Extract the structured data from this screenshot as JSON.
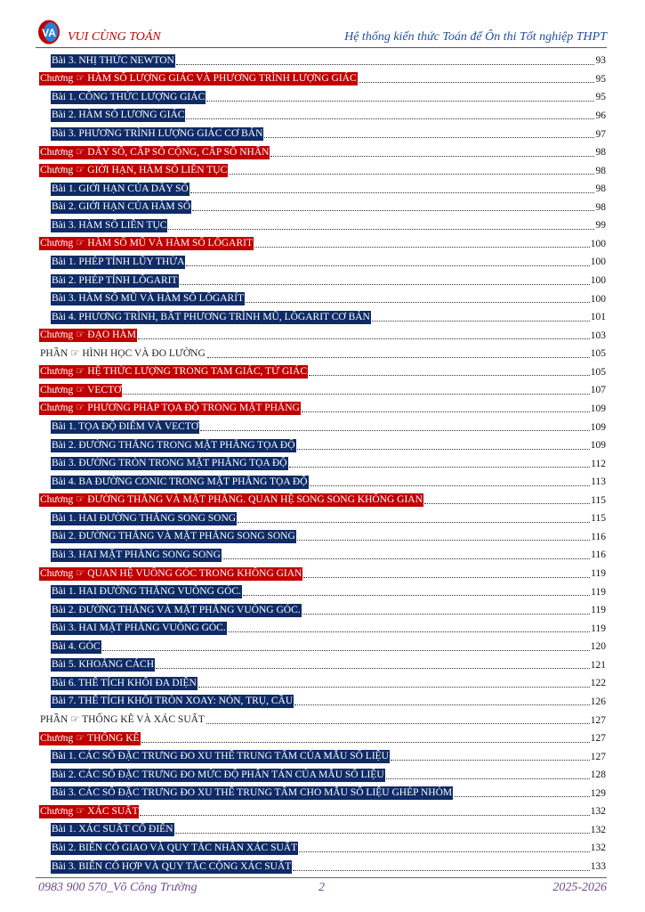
{
  "header": {
    "brand": "VUI CÙNG TOÁN",
    "logo_text": "VA",
    "subtitle": "Hệ thống kiến thức Toán để Ôn thi Tốt nghiệp THPT"
  },
  "colors": {
    "chapter_bg": "#c00000",
    "lesson_bg": "#0f2b66",
    "brand": "#c00000",
    "subtitle": "#1f4e9a",
    "footer": "#6b4c8a"
  },
  "icons": {
    "pointer": "pointing-hand-icon"
  },
  "toc": [
    {
      "type": "lesson",
      "text": "Bài 3.  NHỊ THỨC NEWTON",
      "page": "93"
    },
    {
      "type": "chapter",
      "text": "Chương ☞ HÀM SỐ LƯỢNG GIÁC VÀ PHƯƠNG TRÌNH LƯỢNG GIÁC",
      "page": "95"
    },
    {
      "type": "lesson",
      "text": "Bài 1. CÔNG THỨC LƯỢNG GIÁC",
      "page": "95"
    },
    {
      "type": "lesson",
      "text": "Bài 2. HÀM SỐ LƯƠNG GIÁC",
      "page": "96"
    },
    {
      "type": "lesson",
      "text": "Bài 3. PHƯƠNG TRÌNH LƯỢNG GIÁC CƠ BẢN",
      "page": "97"
    },
    {
      "type": "chapter",
      "text": "Chương ☞ DÃY SỐ, CẤP SỐ CỘNG, CẤP SỐ NHÂN",
      "page": "98"
    },
    {
      "type": "chapter",
      "text": "Chương ☞ GIỚI HẠN, HÀM SỐ LIÊN TỤC",
      "page": "98"
    },
    {
      "type": "lesson",
      "text": "Bài 1. GIỚI HẠN CỦA DÃY SỐ",
      "page": "98"
    },
    {
      "type": "lesson",
      "text": "Bài 2. GIỚI HẠN CỦA HÀM SỐ",
      "page": "98"
    },
    {
      "type": "lesson",
      "text": "Bài 3. HÀM SỐ LIÊN TỤC",
      "page": "99"
    },
    {
      "type": "chapter",
      "text": "Chương ☞ HÀM SỐ MŨ VÀ HÀM SỐ LÔGARIT",
      "page": "100"
    },
    {
      "type": "lesson",
      "text": "Bài 1. PHÉP TÍNH LŨY THỪA",
      "page": "100"
    },
    {
      "type": "lesson",
      "text": "Bài 2. PHÉP TÍNH LÔGARIT",
      "page": "100"
    },
    {
      "type": "lesson",
      "text": "Bài 3. HÀM SỐ MŨ VÀ HÀM SỐ LÔGARÍT",
      "page": "100"
    },
    {
      "type": "lesson",
      "text": "Bài 4. PHƯƠNG TRÌNH, BẤT PHƯƠNG TRÌNH MŨ, LÔGARIT CƠ BẢN",
      "page": "101"
    },
    {
      "type": "chapter",
      "text": "Chương ☞ ĐẠO HÀM",
      "page": "103"
    },
    {
      "type": "part",
      "text": "PHẦN ☞ HÌNH HỌC VÀ ĐO LƯỜNG",
      "page": "105"
    },
    {
      "type": "chapter",
      "text": "Chương ☞ HỆ THỨC LƯỢNG TRONG TAM GIÁC, TỨ GIÁC",
      "page": "105"
    },
    {
      "type": "chapter",
      "text": "Chương ☞ VECTƠ",
      "page": "107"
    },
    {
      "type": "chapter",
      "text": "Chương ☞ PHƯƠNG PHÁP TỌA ĐỘ TRONG MẶT PHẲNG",
      "page": "109"
    },
    {
      "type": "lesson",
      "text": "Bài 1. TỌA ĐỘ ĐIỂM VÀ VECTƠ",
      "page": "109"
    },
    {
      "type": "lesson",
      "text": "Bài 2. ĐƯỜNG THẲNG TRONG MẶT PHẲNG TỌA ĐỘ",
      "page": "109"
    },
    {
      "type": "lesson",
      "text": "Bài 3. ĐƯỜNG TRÒN TRONG MẶT PHẲNG TỌA ĐỘ",
      "page": "112"
    },
    {
      "type": "lesson",
      "text": "Bài 4. BA ĐƯỜNG CONIC TRONG MẶT PHẲNG TỌA ĐỘ",
      "page": "113"
    },
    {
      "type": "chapter",
      "text": "Chương ☞ ĐƯỜNG THẲNG VÀ MẶT PHẲNG. QUAN HỆ SONG SONG KHÔNG GIAN",
      "page": "115"
    },
    {
      "type": "lesson",
      "text": "Bài 1. HAI ĐƯỜNG THẲNG SONG SONG",
      "page": "115"
    },
    {
      "type": "lesson",
      "text": "Bài 2. ĐƯỜNG THẲNG VÀ MẶT PHẲNG SONG SONG",
      "page": "116"
    },
    {
      "type": "lesson",
      "text": "Bài 3.  HAI MẶT PHẲNG SONG SONG",
      "page": "116"
    },
    {
      "type": "chapter",
      "text": "Chương ☞ QUAN HỆ VUÔNG GÓC TRONG KHÔNG GIAN",
      "page": "119"
    },
    {
      "type": "lesson",
      "text": "Bài 1. HAI ĐƯỜNG THẲNG VUÔNG GÓC.",
      "page": "119"
    },
    {
      "type": "lesson",
      "text": "Bài 2.  ĐƯỜNG THẲNG VÀ MẶT PHẲNG VUÔNG GÓC.",
      "page": "119"
    },
    {
      "type": "lesson",
      "text": "Bài 3. HAI MẶT PHẲNG VUÔNG GÓC.",
      "page": "119"
    },
    {
      "type": "lesson",
      "text": "Bài 4. GÓC",
      "page": "120"
    },
    {
      "type": "lesson",
      "text": "Bài 5.  KHOẢNG CÁCH",
      "page": "121"
    },
    {
      "type": "lesson",
      "text": "Bài 6. THỂ TÍCH KHỐI ĐA DIỆN",
      "page": "122"
    },
    {
      "type": "lesson",
      "text": "Bài 7. THỂ TÍCH KHỐI TRÒN XOAY: NÓN, TRỤ, CẦU",
      "page": "126"
    },
    {
      "type": "part",
      "text": "PHẦN ☞ THỐNG KÊ VÀ XÁC SUẤT",
      "page": "127"
    },
    {
      "type": "chapter",
      "text": "Chương ☞ THỐNG KÊ",
      "page": "127"
    },
    {
      "type": "lesson",
      "text": "Bài 1. CÁC SỐ ĐẶC TRƯNG ĐO XU THẾ TRUNG TÂM CỦA MẪU SỐ LIỆU",
      "page": "127"
    },
    {
      "type": "lesson",
      "text": "Bài 2. CÁC SỐ ĐẶC TRƯNG ĐO MỨC ĐỘ PHÂN TÁN CỦA MẪU SỐ LIỆU",
      "page": "128"
    },
    {
      "type": "lesson",
      "text": "Bài 3. CÁC SỐ ĐẶC TRƯNG ĐO XU THẾ TRUNG TÂM CHO MẪU SỐ LIỆU GHÉP NHÓM",
      "page": "129"
    },
    {
      "type": "chapter",
      "text": "Chương ☞ XÁC SUẤT",
      "page": "132"
    },
    {
      "type": "lesson",
      "text": "Bài 1. XÁC SUẤT CỔ ĐIỂN",
      "page": "132"
    },
    {
      "type": "lesson",
      "text": "Bài 2. BIẾN CỐ GIAO VÀ QUY TẮC NHÂN XÁC SUẤT",
      "page": "132"
    },
    {
      "type": "lesson",
      "text": "Bài 3. BIẾN CỐ HỢP VÀ QUY TẮC CỘNG XÁC SUẤT",
      "page": "133"
    }
  ],
  "footer": {
    "author": "0983 900 570_Võ Công Trường",
    "page_number": "2",
    "year": "2025-2026"
  }
}
